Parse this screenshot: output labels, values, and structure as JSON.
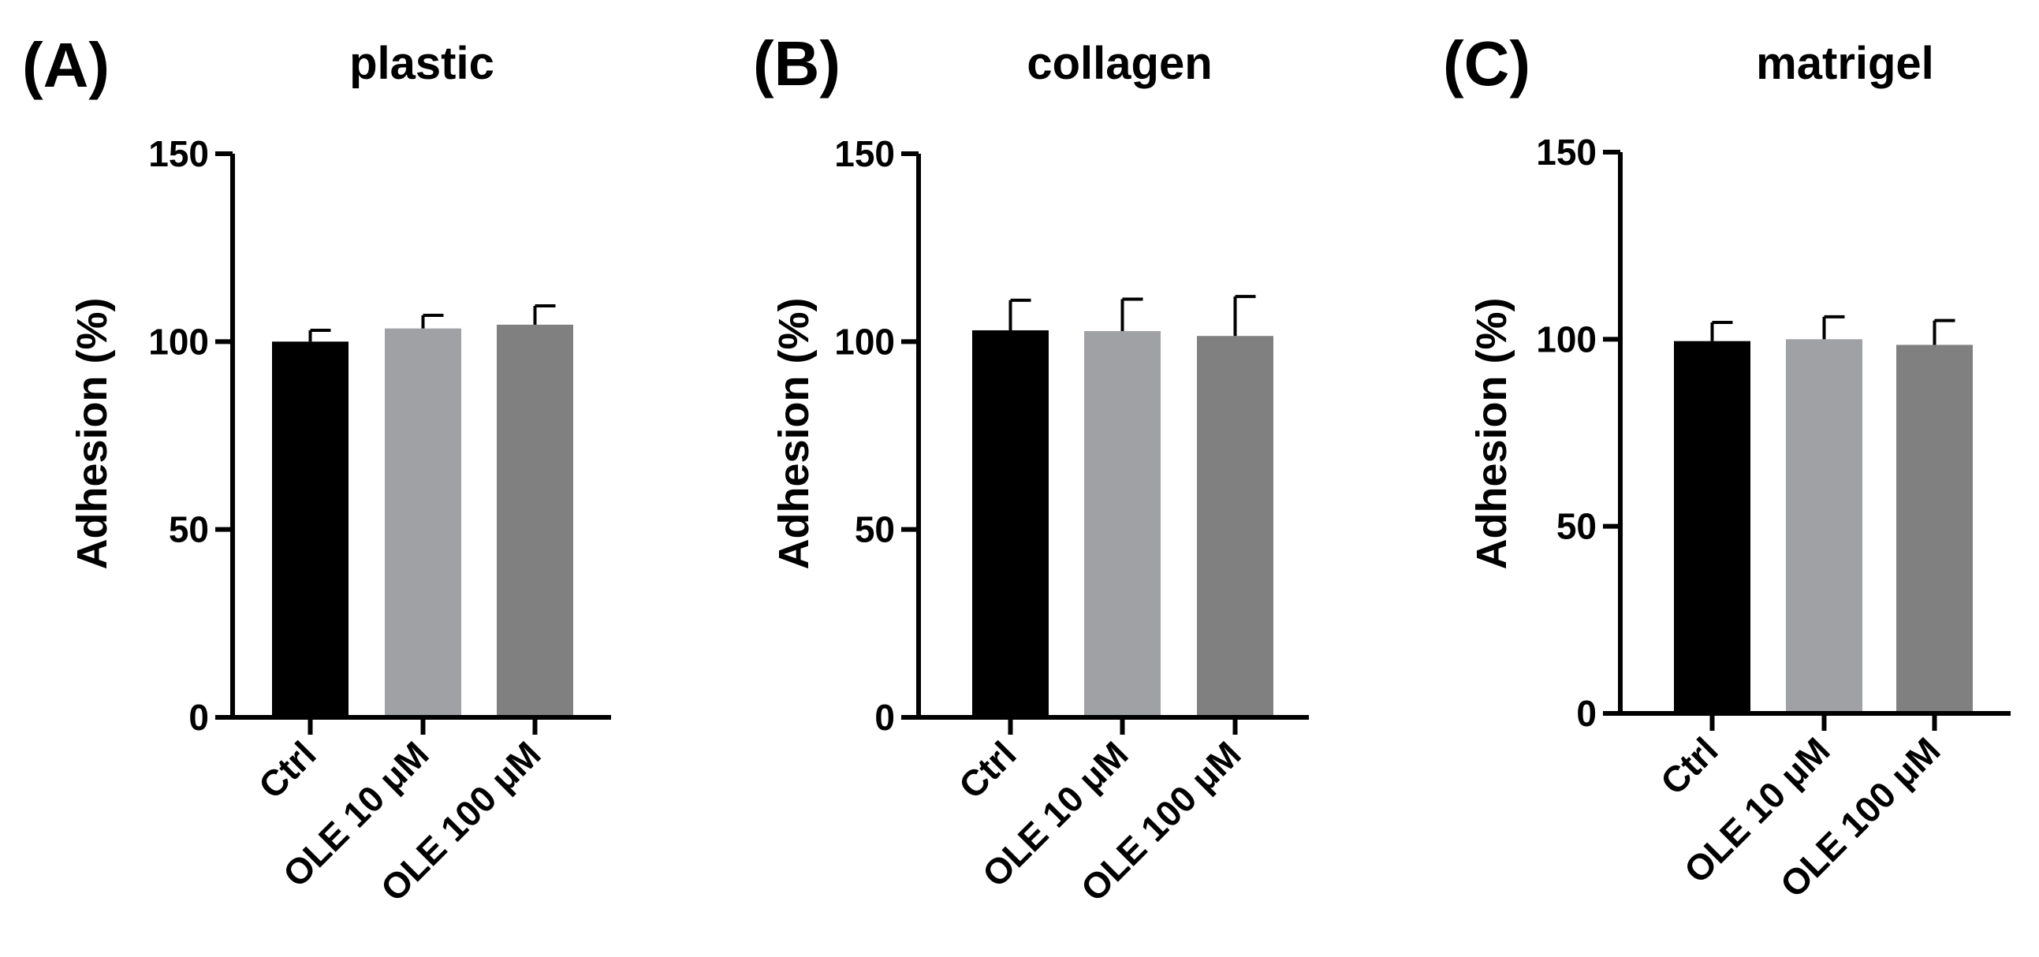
{
  "chart_data": [
    {
      "type": "bar",
      "panel": "(A)",
      "title": "plastic",
      "ylabel": "Adhesion (%)",
      "ylim": [
        0,
        150
      ],
      "yticks": [
        "0",
        "50",
        "100",
        "150"
      ],
      "categories": [
        "Ctrl",
        "OLE 10 μM",
        "OLE 100 μM"
      ],
      "values": [
        100,
        103.5,
        104.5
      ],
      "errors": [
        3,
        3.5,
        5
      ],
      "colors": [
        "#000000",
        "#a0a1a5",
        "#808080"
      ],
      "grid": false
    },
    {
      "type": "bar",
      "panel": "(B)",
      "title": "collagen",
      "ylabel": "Adhesion (%)",
      "ylim": [
        0,
        150
      ],
      "yticks": [
        "0",
        "50",
        "100",
        "150"
      ],
      "categories": [
        "Ctrl",
        "OLE 10 μM",
        "OLE 100 μM"
      ],
      "values": [
        103,
        102.8,
        101.5
      ],
      "errors": [
        8,
        8.5,
        10.5
      ],
      "colors": [
        "#000000",
        "#a0a1a5",
        "#808080"
      ],
      "grid": false
    },
    {
      "type": "bar",
      "panel": "(C)",
      "title": "matrigel",
      "ylabel": "Adhesion (%)",
      "ylim": [
        0,
        150
      ],
      "yticks": [
        "0",
        "50",
        "100",
        "150"
      ],
      "categories": [
        "Ctrl",
        "OLE 10 μM",
        "OLE 100 μM"
      ],
      "values": [
        99.5,
        100,
        98.5
      ],
      "errors": [
        5,
        6,
        6.5
      ],
      "colors": [
        "#000000",
        "#a0a1a5",
        "#808080"
      ],
      "grid": false
    }
  ]
}
